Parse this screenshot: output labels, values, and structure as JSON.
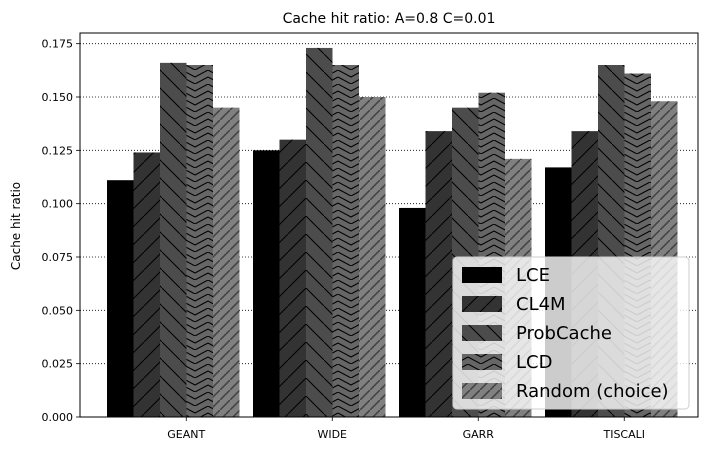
{
  "chart_data": {
    "type": "bar",
    "title": "Cache hit ratio: A=0.8 C=0.01",
    "xlabel": "",
    "ylabel": "Cache hit ratio",
    "ylim": [
      0,
      0.18
    ],
    "yticks": [
      "0.000",
      "0.025",
      "0.050",
      "0.075",
      "0.100",
      "0.125",
      "0.150",
      "0.175"
    ],
    "categories": [
      "GEANT",
      "WIDE",
      "GARR",
      "TISCALI"
    ],
    "grid": "horizontal dotted",
    "legend_position": "bottom-right",
    "series": [
      {
        "name": "LCE",
        "color": "#000000",
        "hatch": "none",
        "values": [
          0.111,
          0.125,
          0.098,
          0.117
        ]
      },
      {
        "name": "CL4M",
        "color": "#333333",
        "hatch": "forward",
        "values": [
          0.124,
          0.13,
          0.134,
          0.134
        ]
      },
      {
        "name": "ProbCache",
        "color": "#4c4c4c",
        "hatch": "back",
        "values": [
          0.166,
          0.173,
          0.145,
          0.165
        ]
      },
      {
        "name": "LCD",
        "color": "#666666",
        "hatch": "chevron",
        "values": [
          0.165,
          0.165,
          0.152,
          0.161
        ]
      },
      {
        "name": "Random (choice)",
        "color": "#808080",
        "hatch": "forward-dense",
        "values": [
          0.145,
          0.15,
          0.121,
          0.148
        ]
      }
    ]
  }
}
